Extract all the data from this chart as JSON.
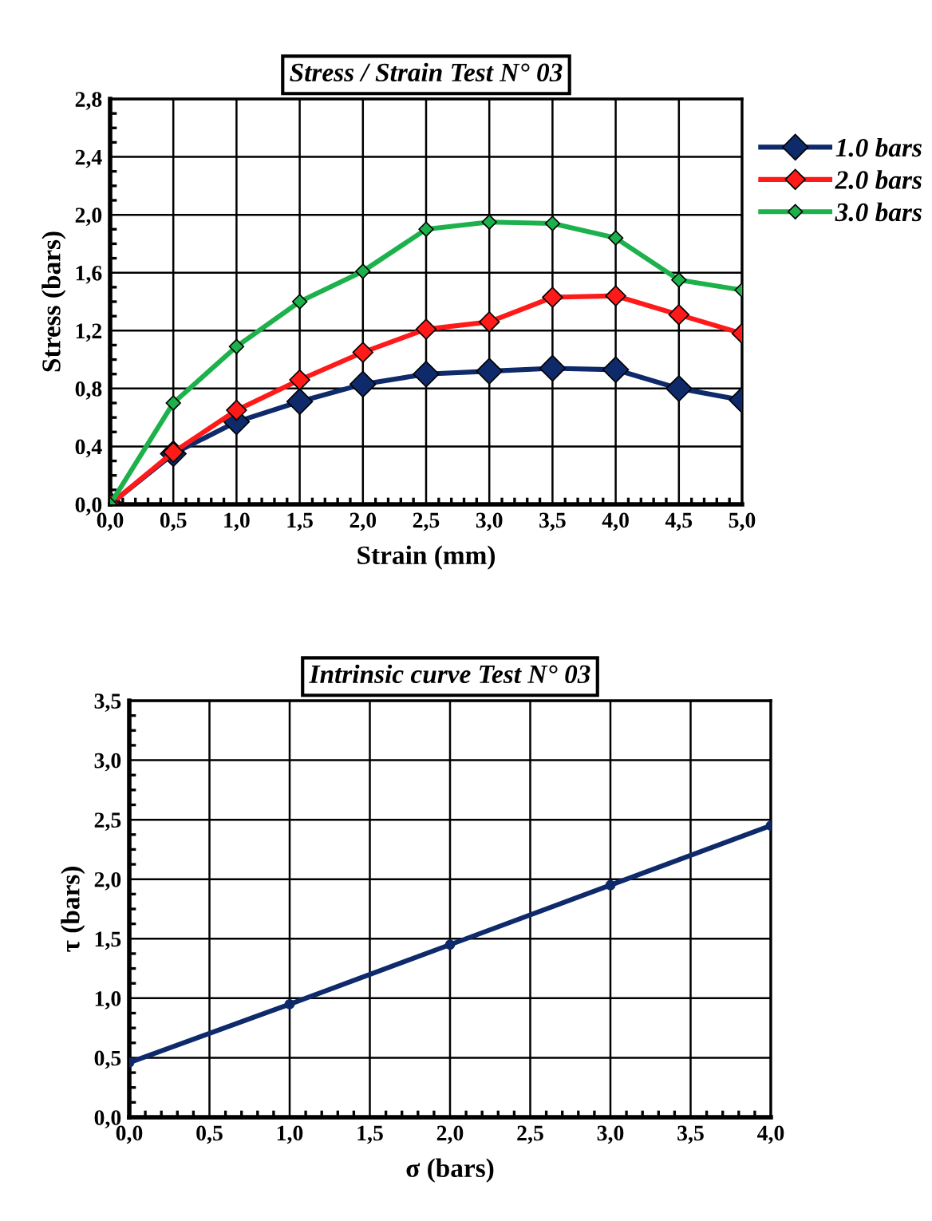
{
  "chart_data": [
    {
      "type": "line",
      "title": "Stress / Strain Test N° 03",
      "xlabel": "Strain (mm)",
      "ylabel": "Stress (bars)",
      "x": [
        0,
        0.5,
        1,
        1.5,
        2,
        2.5,
        3,
        3.5,
        4,
        4.5,
        5
      ],
      "series": [
        {
          "name": "1.0 bars",
          "color": "#0e2a6b",
          "values": [
            0,
            0.35,
            0.57,
            0.71,
            0.83,
            0.9,
            0.92,
            0.94,
            0.93,
            0.8,
            0.72
          ]
        },
        {
          "name": "2.0 bars",
          "color": "#ff1a1a",
          "values": [
            0,
            0.36,
            0.65,
            0.86,
            1.05,
            1.21,
            1.26,
            1.43,
            1.44,
            1.31,
            1.18
          ]
        },
        {
          "name": "3.0 bars",
          "color": "#1db14b",
          "values": [
            0,
            0.7,
            1.09,
            1.4,
            1.61,
            1.9,
            1.95,
            1.94,
            1.84,
            1.55,
            1.48
          ]
        }
      ],
      "xlim": [
        0,
        5
      ],
      "ylim": [
        0,
        2.8
      ],
      "xticks": [
        {
          "value": 0,
          "label": "0,0"
        },
        {
          "value": 0.5,
          "label": "0,5"
        },
        {
          "value": 1,
          "label": "1,0"
        },
        {
          "value": 1.5,
          "label": "1,5"
        },
        {
          "value": 2,
          "label": "2,0"
        },
        {
          "value": 2.5,
          "label": "2,5"
        },
        {
          "value": 3,
          "label": "3,0"
        },
        {
          "value": 3.5,
          "label": "3,5"
        },
        {
          "value": 4,
          "label": "4,0"
        },
        {
          "value": 4.5,
          "label": "4,5"
        },
        {
          "value": 5,
          "label": "5,0"
        }
      ],
      "yticks": [
        {
          "value": 0,
          "label": "0,0"
        },
        {
          "value": 0.4,
          "label": "0,4"
        },
        {
          "value": 0.8,
          "label": "0,8"
        },
        {
          "value": 1.2,
          "label": "1,2"
        },
        {
          "value": 1.6,
          "label": "1,6"
        },
        {
          "value": 2.0,
          "label": "2,0"
        },
        {
          "value": 2.4,
          "label": "2,4"
        },
        {
          "value": 2.8,
          "label": "2,8"
        }
      ],
      "grid": true,
      "legend": "right",
      "marker": "diamond",
      "line_style": "solid"
    },
    {
      "type": "line",
      "title": "Intrinsic curve Test N° 03",
      "xlabel": "σ (bars)",
      "ylabel": "τ (bars)",
      "x": [
        0,
        1,
        2,
        3,
        4
      ],
      "series": [
        {
          "color": "#0e2a6b",
          "values": [
            0.46,
            0.95,
            1.45,
            1.95,
            2.45
          ]
        }
      ],
      "xlim": [
        0,
        4
      ],
      "ylim": [
        0,
        3.5
      ],
      "xticks": [
        {
          "value": 0,
          "label": "0,0"
        },
        {
          "value": 0.5,
          "label": "0,5"
        },
        {
          "value": 1,
          "label": "1,0"
        },
        {
          "value": 1.5,
          "label": "1,5"
        },
        {
          "value": 2,
          "label": "2,0"
        },
        {
          "value": 2.5,
          "label": "2,5"
        },
        {
          "value": 3,
          "label": "3,0"
        },
        {
          "value": 3.5,
          "label": "3,5"
        },
        {
          "value": 4,
          "label": "4,0"
        }
      ],
      "yticks": [
        {
          "value": 0,
          "label": "0,0"
        },
        {
          "value": 0.5,
          "label": "0,5"
        },
        {
          "value": 1,
          "label": "1,0"
        },
        {
          "value": 1.5,
          "label": "1,5"
        },
        {
          "value": 2,
          "label": "2,0"
        },
        {
          "value": 2.5,
          "label": "2,5"
        },
        {
          "value": 3,
          "label": "3,0"
        },
        {
          "value": 3.5,
          "label": "3,5"
        }
      ],
      "grid": true,
      "marker": "circle",
      "line_style": "solid"
    }
  ]
}
